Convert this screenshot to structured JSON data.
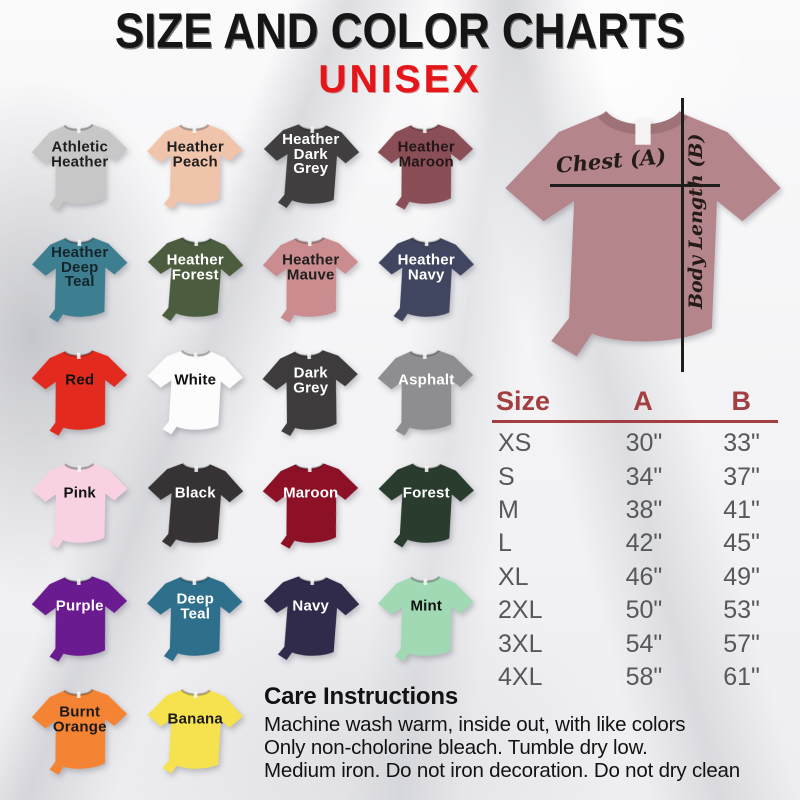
{
  "header": {
    "title": "SIZE AND COLOR CHARTS",
    "subtitle": "UNISEX",
    "subtitle_color": "#e51619"
  },
  "swatches": [
    {
      "label": "Athletic\nHeather",
      "color": "#c7c7c7",
      "text_color": "#1f1f1f"
    },
    {
      "label": "Heather\nPeach",
      "color": "#f0c3ab",
      "text_color": "#1f1f1f"
    },
    {
      "label": "Heather\nDark\nGrey",
      "color": "#403e3f",
      "text_color": "#ffffff"
    },
    {
      "label": "Heather\nMaroon",
      "color": "#8a4e56",
      "text_color": "#23171a"
    },
    {
      "label": "Heather\nDeep\nTeal",
      "color": "#3e7e91",
      "text_color": "#14262b"
    },
    {
      "label": "Heather\nForest",
      "color": "#4c5c3e",
      "text_color": "#ffffff"
    },
    {
      "label": "Heather\nMauve",
      "color": "#ca8c8e",
      "text_color": "#1f1f1f"
    },
    {
      "label": "Heather\nNavy",
      "color": "#414660",
      "text_color": "#ffffff"
    },
    {
      "label": "Red",
      "color": "#e22a1e",
      "text_color": "#111111"
    },
    {
      "label": "White",
      "color": "#fcfcfc",
      "text_color": "#111111"
    },
    {
      "label": "Dark\nGrey",
      "color": "#3d3b3c",
      "text_color": "#ffffff"
    },
    {
      "label": "Asphalt",
      "color": "#8e8e90",
      "text_color": "#ffffff"
    },
    {
      "label": "Pink",
      "color": "#f8d2e3",
      "text_color": "#111111"
    },
    {
      "label": "Black",
      "color": "#373334",
      "text_color": "#ffffff"
    },
    {
      "label": "Maroon",
      "color": "#8c1026",
      "text_color": "#ffffff"
    },
    {
      "label": "Forest",
      "color": "#293c2e",
      "text_color": "#ffffff"
    },
    {
      "label": "Purple",
      "color": "#6a1b90",
      "text_color": "#ffffff"
    },
    {
      "label": "Deep\nTeal",
      "color": "#2e6f8c",
      "text_color": "#ffffff"
    },
    {
      "label": "Navy",
      "color": "#302a4b",
      "text_color": "#ffffff"
    },
    {
      "label": "Mint",
      "color": "#a0d9b4",
      "text_color": "#111111"
    },
    {
      "label": "Burnt\nOrange",
      "color": "#f48433",
      "text_color": "#1a1a1a"
    },
    {
      "label": "Banana",
      "color": "#f6e14f",
      "text_color": "#1a1a1a"
    }
  ],
  "measure_shirt": {
    "color": "#b4858a",
    "collar_color": "#9e7277",
    "chest_label": "Chest (A)",
    "length_label": "Body Length (B)"
  },
  "size_table": {
    "headers": {
      "size": "Size",
      "a": "A",
      "b": "B"
    },
    "header_color": "#a43f41",
    "rows": [
      {
        "size": "XS",
        "a": "30\"",
        "b": "33\""
      },
      {
        "size": "S",
        "a": "34\"",
        "b": "37\""
      },
      {
        "size": "M",
        "a": "38\"",
        "b": "41\""
      },
      {
        "size": "L",
        "a": "42\"",
        "b": "45\""
      },
      {
        "size": "XL",
        "a": "46\"",
        "b": "49\""
      },
      {
        "size": "2XL",
        "a": "50\"",
        "b": "53\""
      },
      {
        "size": "3XL",
        "a": "54\"",
        "b": "57\""
      },
      {
        "size": "4XL",
        "a": "58\"",
        "b": "61\""
      }
    ]
  },
  "care": {
    "title": "Care Instructions",
    "lines": [
      "Machine wash warm, inside out, with like colors",
      "Only non-cholorine bleach. Tumble dry low.",
      "Medium iron. Do not iron decoration. Do not dry clean"
    ]
  }
}
